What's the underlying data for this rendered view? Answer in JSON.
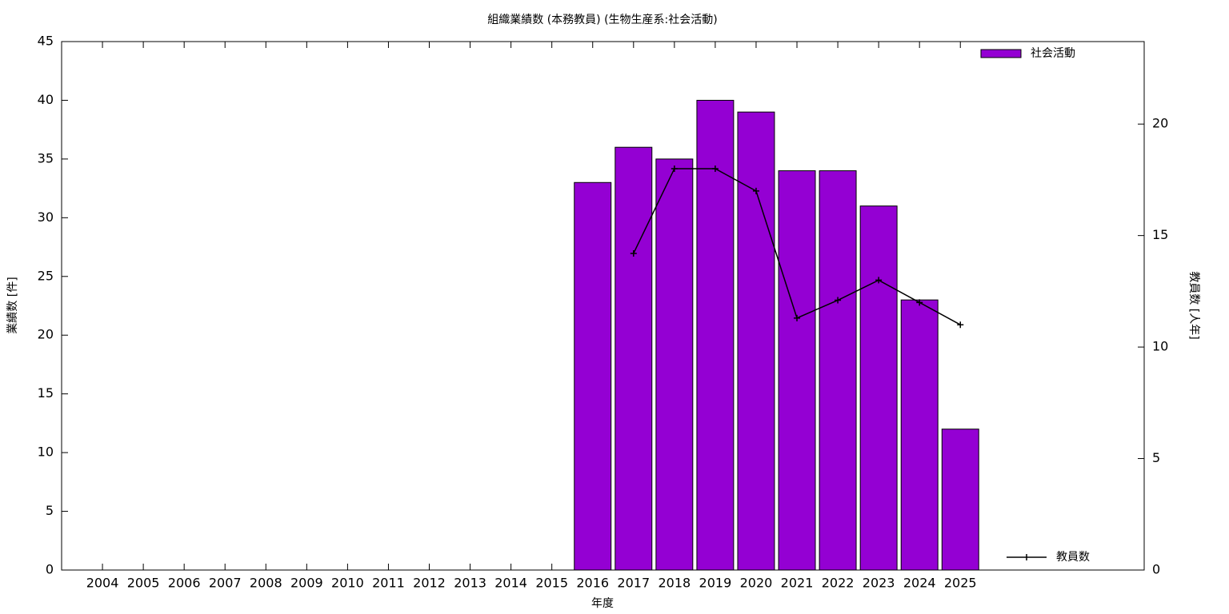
{
  "chart_data": {
    "type": "bar",
    "title": "組織業績数 (本務教員) (生物生産系:社会活動)",
    "x_label": "年度",
    "y_label": "業績数 [件]",
    "y2_label": "教員数 [人年]",
    "categories": [
      "2004",
      "2005",
      "2006",
      "2007",
      "2008",
      "2009",
      "2010",
      "2011",
      "2012",
      "2013",
      "2014",
      "2015",
      "2016",
      "2017",
      "2018",
      "2019",
      "2020",
      "2021",
      "2022",
      "2023",
      "2024",
      "2025"
    ],
    "series": [
      {
        "name": "社会活動",
        "color": "#9400d3",
        "type": "bar",
        "values": [
          null,
          null,
          null,
          null,
          null,
          null,
          null,
          null,
          null,
          null,
          null,
          null,
          33,
          36,
          35,
          40,
          39,
          34,
          34,
          31,
          23,
          12
        ]
      },
      {
        "name": "教員数",
        "color": "#000000",
        "type": "line",
        "axis": "y2",
        "values": [
          null,
          null,
          null,
          null,
          null,
          null,
          null,
          null,
          null,
          null,
          null,
          null,
          null,
          14.2,
          18,
          18,
          17,
          11.3,
          12.1,
          13,
          12,
          11
        ]
      }
    ],
    "ylim": [
      0,
      45
    ],
    "yticks": [
      0,
      5,
      10,
      15,
      20,
      25,
      30,
      35,
      40,
      45
    ],
    "y2lim": [
      0,
      23.7
    ],
    "y2ticks": [
      0,
      5,
      10,
      15,
      20
    ],
    "grid": false
  }
}
